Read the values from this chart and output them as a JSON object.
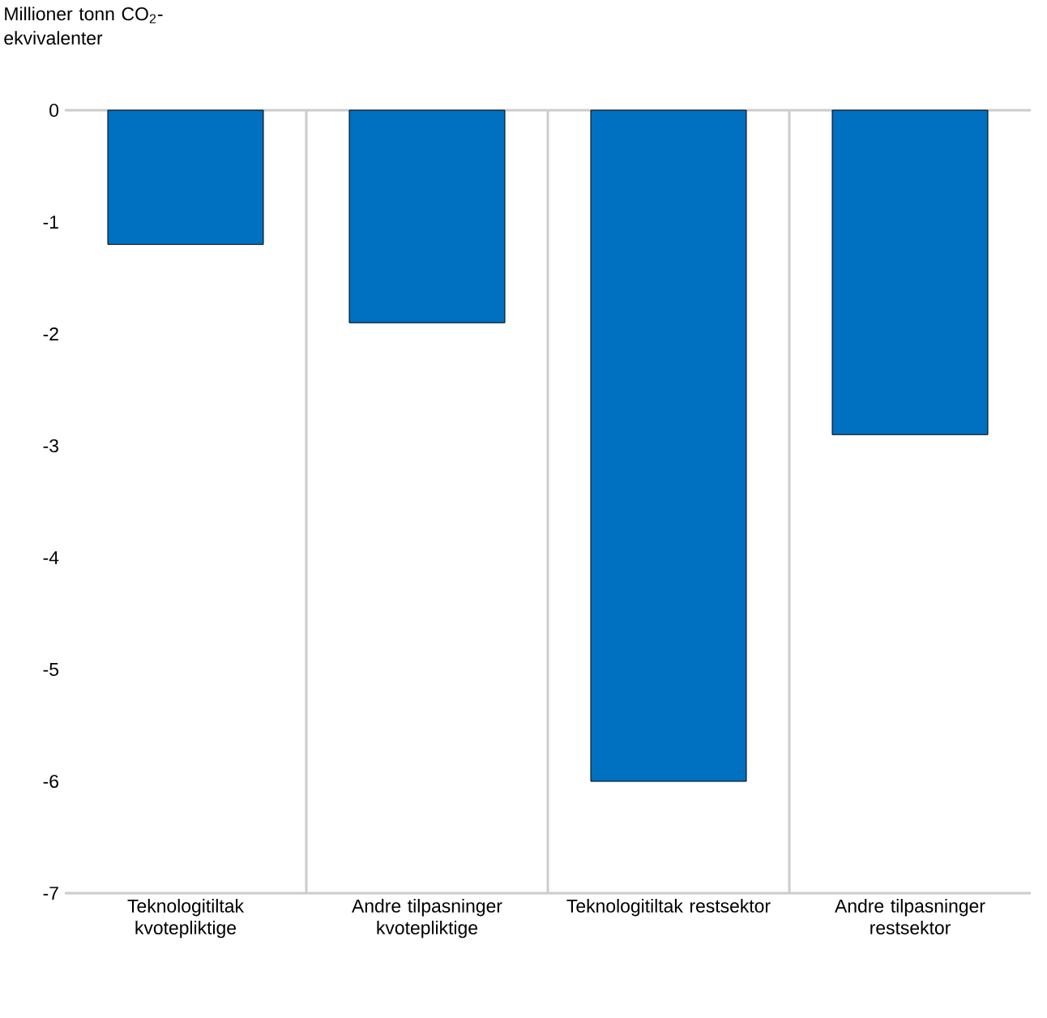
{
  "chart_data": {
    "type": "bar",
    "ylabel": "Millioner tonn CO$_{2}$-ekvivalenter",
    "categories": [
      "Teknologitiltak kvotepliktige",
      "Andre tilpasninger kvotepliktige",
      "Teknologitiltak restsektor",
      "Andre tilpasninger restsektor"
    ],
    "values": [
      -1.2,
      -1.9,
      -6.0,
      -2.9
    ],
    "color": "#0070c0",
    "ylim": [
      -7,
      0
    ],
    "yticks": [
      0,
      -1,
      -2,
      -3,
      -4,
      -5,
      -6,
      -7
    ],
    "grid": "x"
  }
}
